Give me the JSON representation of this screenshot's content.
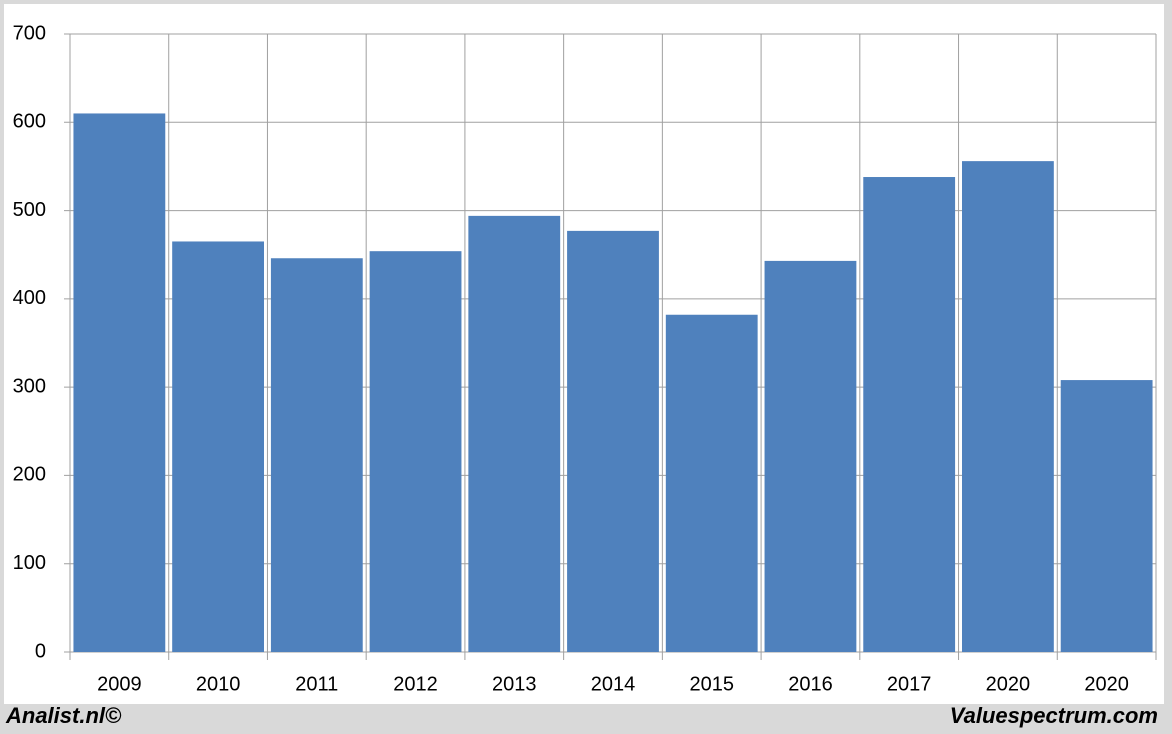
{
  "chart_data": {
    "type": "bar",
    "categories": [
      "2009",
      "2010",
      "2011",
      "2012",
      "2013",
      "2014",
      "2015",
      "2016",
      "2017",
      "2020",
      "2020"
    ],
    "values": [
      610,
      465,
      446,
      454,
      494,
      477,
      382,
      443,
      538,
      556,
      308
    ],
    "color": "#4f81bd",
    "ylim": [
      0,
      700
    ],
    "yticks": [
      0,
      100,
      200,
      300,
      400,
      500,
      600,
      700
    ],
    "grid": true,
    "footer_left": "Analist.nl©",
    "footer_right": "Valuespectrum.com"
  }
}
